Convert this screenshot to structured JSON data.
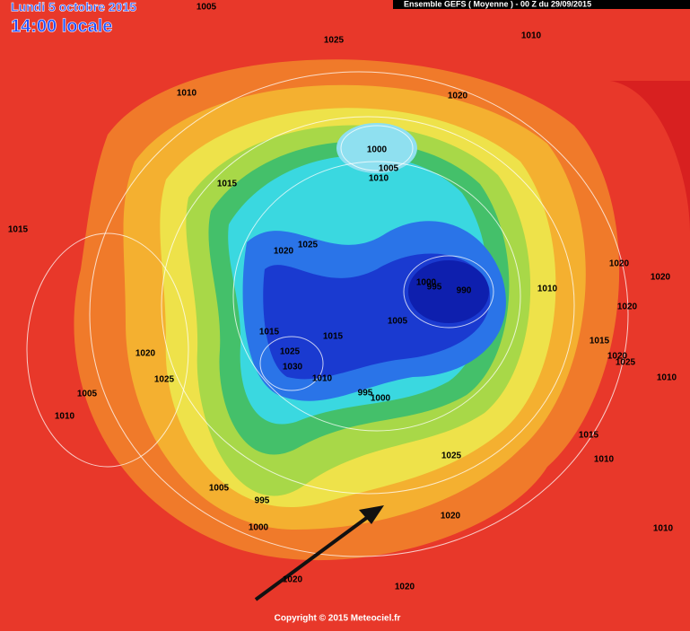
{
  "header": {
    "date": "Lundi 5 octobre 2015",
    "time": "14:00 locale",
    "banner": "Ensemble GEFS  ( Moyenne )  -  00 Z du 29/09/2015"
  },
  "footer": {
    "copyright": "Copyright © 2015 Meteociel.fr"
  },
  "labels": [
    "1005",
    "1025",
    "1010",
    "1010",
    "1020",
    "1000",
    "1005",
    "1010",
    "1015",
    "1015",
    "1020",
    "1025",
    "1000",
    "995",
    "990",
    "1010",
    "1020",
    "1020",
    "1020",
    "1005",
    "1015",
    "1015",
    "1015",
    "1020",
    "1025",
    "1025",
    "1020",
    "1030",
    "1010",
    "1010",
    "1025",
    "995",
    "1000",
    "1005",
    "1010",
    "1015",
    "1025",
    "1010",
    "1005",
    "995",
    "1020",
    "1000",
    "1010",
    "1020",
    "1020"
  ]
}
